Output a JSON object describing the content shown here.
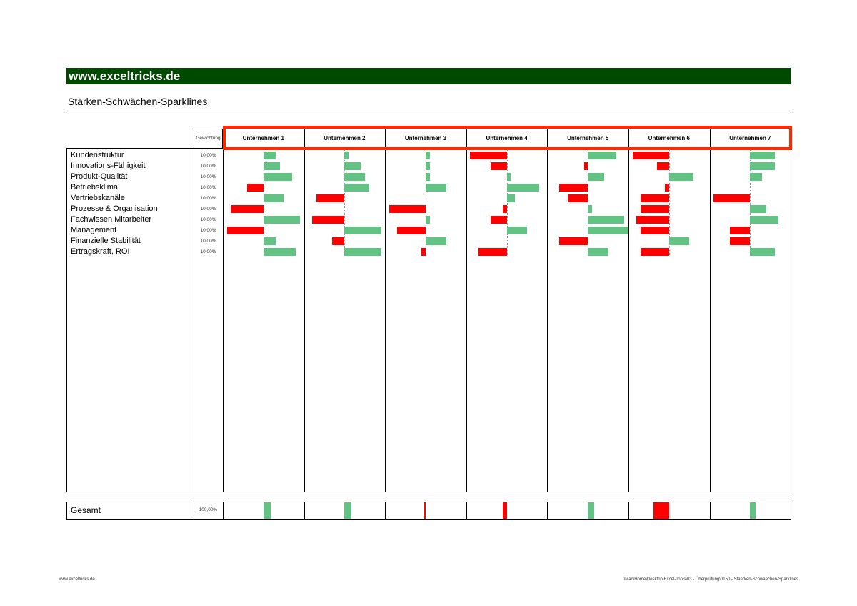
{
  "banner": "www.exceltricks.de",
  "title": "Stärken-Schwächen-Sparklines",
  "weight_header": "Gewichtung",
  "companies": [
    "Unternehmen 1",
    "Unternehmen 2",
    "Unternehmen 3",
    "Unternehmen 4",
    "Unternehmen 5",
    "Unternehmen 6",
    "Unternehmen 7"
  ],
  "criteria": [
    {
      "label": "Kundenstruktur",
      "weight": "10,00%",
      "values": [
        3,
        1,
        1,
        -9,
        7,
        -9,
        6
      ]
    },
    {
      "label": "Innovations-Fähigkeit",
      "weight": "10,00%",
      "values": [
        4,
        4,
        1,
        -4,
        -1,
        -3,
        6
      ]
    },
    {
      "label": "Produkt-Qualität",
      "weight": "10,00%",
      "values": [
        7,
        5,
        1,
        1,
        4,
        6,
        3
      ]
    },
    {
      "label": "Betriebsklima",
      "weight": "10,00%",
      "values": [
        -4,
        6,
        5,
        8,
        -7,
        -1,
        0
      ]
    },
    {
      "label": "Vertriebskanäle",
      "weight": "10,00%",
      "values": [
        5,
        -7,
        0,
        2,
        -5,
        -7,
        -9
      ]
    },
    {
      "label": "Prozesse & Organisation",
      "weight": "10,00%",
      "values": [
        -8,
        0,
        -9,
        -1,
        1,
        -7,
        4
      ]
    },
    {
      "label": "Fachwissen Mitarbeiter",
      "weight": "10,00%",
      "values": [
        9,
        -8,
        1,
        -4,
        9,
        -8,
        7
      ]
    },
    {
      "label": "Management",
      "weight": "10,00%",
      "values": [
        -9,
        9,
        -7,
        5,
        10,
        -7,
        -5
      ]
    },
    {
      "label": "Finanzielle Stabilität",
      "weight": "10,00%",
      "values": [
        3,
        -3,
        5,
        0,
        -7,
        5,
        -5
      ]
    },
    {
      "label": "Ertragskraft, ROI",
      "weight": "10,00%",
      "values": [
        8,
        9,
        -1,
        -7,
        5,
        -7,
        6
      ]
    }
  ],
  "total": {
    "label": "Gesamt",
    "weight": "100,00%",
    "values": [
      1.8,
      1.6,
      -0.3,
      -0.9,
      1.6,
      -3.8,
      1.3
    ]
  },
  "colors": {
    "positive": "#63c384",
    "negative": "#ff0000",
    "banner": "#004a00",
    "highlight": "#ff2a00"
  },
  "footer": {
    "left": "www.exceltricks.de",
    "right": "\\\\Mac\\Home\\Desktop\\Excel-Tools\\03 - Überprüfung\\0150 - Staerken-Schwaechen-Sparklines"
  }
}
